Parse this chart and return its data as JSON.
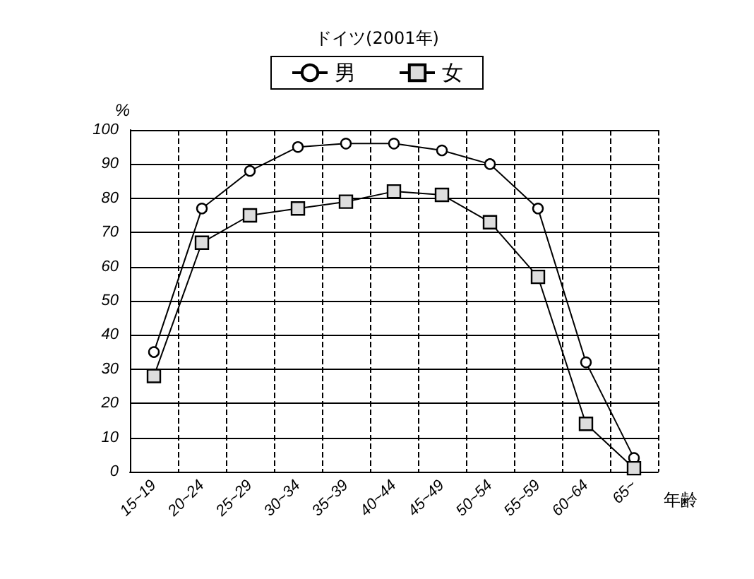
{
  "chart_data": {
    "type": "line",
    "title": "ドイツ(2001年)",
    "ylabel": "%",
    "xlabel": "年齢",
    "categories": [
      "15~19",
      "20~24",
      "25~29",
      "30~34",
      "35~39",
      "40~44",
      "45~49",
      "50~54",
      "55~59",
      "60~64",
      "65~"
    ],
    "series": [
      {
        "name": "男",
        "color": "#000000",
        "marker": "circle",
        "values": [
          35,
          77,
          88,
          95,
          96,
          96,
          94,
          90,
          77,
          32,
          4
        ]
      },
      {
        "name": "女",
        "color": "#000000",
        "marker": "square",
        "values": [
          28,
          67,
          75,
          77,
          79,
          82,
          81,
          73,
          57,
          14,
          1
        ]
      }
    ],
    "ylim": [
      0,
      100
    ],
    "yticks": [
      0,
      10,
      20,
      30,
      40,
      50,
      60,
      70,
      80,
      90,
      100
    ],
    "grid": true,
    "legend": "top"
  }
}
